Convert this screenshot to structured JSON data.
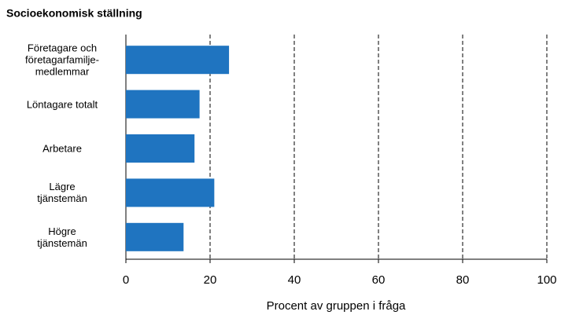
{
  "chart_data": {
    "type": "bar",
    "orientation": "horizontal",
    "title": "Socioekonomisk ställning",
    "x_label": "Procent av gruppen i fråga",
    "categories": [
      "Företagare och\nföretagarfamilje-\nmedlemmar",
      "Löntagare totalt",
      "Arbetare",
      "Lägre\ntjänstemän",
      "Högre\ntjänstemän"
    ],
    "values": [
      24.5,
      17.5,
      16.3,
      21,
      13.7
    ],
    "color": "#1f74c0",
    "xlim": [
      0,
      100
    ],
    "xticks": [
      0,
      20,
      40,
      60,
      80,
      100
    ],
    "grid": true
  }
}
